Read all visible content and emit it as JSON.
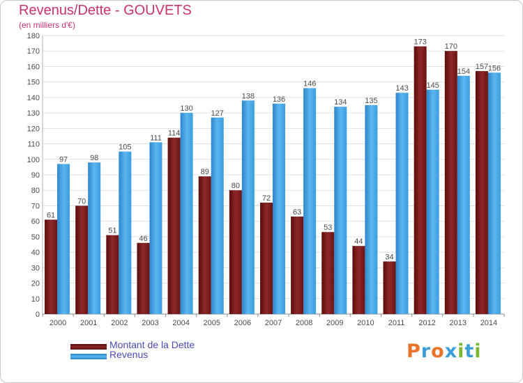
{
  "title": "Revenus/Dette - GOUVETS",
  "subtitle": "(en milliers d'€)",
  "logo": {
    "text": "Proxiti",
    "letter_colors": [
      "#e8742a",
      "#3a9fd8",
      "#e8742a",
      "#3a9fd8",
      "#7ab830",
      "#3a9fd8",
      "#7ab830"
    ]
  },
  "colors": {
    "dette": "#7a1a1a",
    "revenus": "#3c9ee0",
    "labels": "#4a4a4a",
    "grid": "#e0e0e0",
    "title": "#c8336b"
  },
  "chart_data": {
    "type": "bar",
    "title": "Revenus/Dette - GOUVETS",
    "subtitle": "(en milliers d'€)",
    "categories": [
      "2000",
      "2001",
      "2002",
      "2003",
      "2004",
      "2005",
      "2006",
      "2007",
      "2008",
      "2009",
      "2010",
      "2011",
      "2012",
      "2013",
      "2014"
    ],
    "series": [
      {
        "name": "Montant de la Dette",
        "values": [
          61,
          70,
          51,
          46,
          114,
          89,
          80,
          72,
          63,
          53,
          44,
          34,
          173,
          170,
          157
        ]
      },
      {
        "name": "Revenus",
        "values": [
          97,
          98,
          105,
          111,
          130,
          127,
          138,
          136,
          146,
          134,
          135,
          143,
          145,
          154,
          156
        ]
      }
    ],
    "ylim": [
      0,
      180
    ],
    "yticks": [
      0,
      10,
      20,
      30,
      40,
      50,
      60,
      70,
      80,
      90,
      100,
      110,
      120,
      130,
      140,
      150,
      160,
      170,
      180
    ],
    "grid": true,
    "legend_position": "bottom-left"
  }
}
